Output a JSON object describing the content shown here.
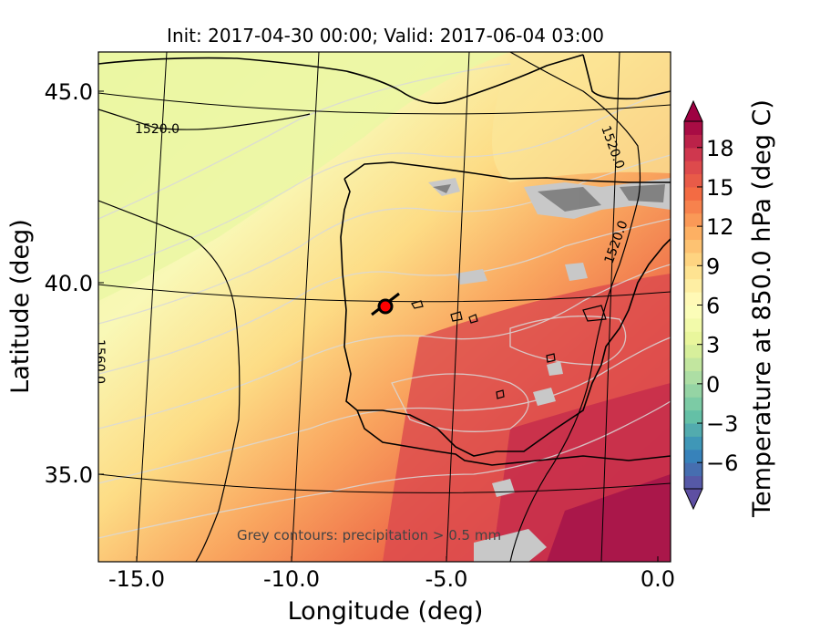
{
  "title": "Init: 2017-04-30 00:00; Valid: 2017-06-04 03:00",
  "map": {
    "xlabel": "Longitude (deg)",
    "ylabel": "Latitude (deg)",
    "xlim": [
      -15.8,
      0.3
    ],
    "ylim": [
      32.7,
      46.0
    ],
    "x_ticks": [
      "-15.0",
      "-10.0",
      "-5.0",
      "0.0"
    ],
    "y_ticks": [
      "45.0",
      "40.0",
      "35.0"
    ],
    "field": "Temperature at 850.0 hPa",
    "field_units": "deg C",
    "geopotential_contour_labels": [
      "1520.0",
      "1520.0",
      "1520.0",
      "1560.0"
    ],
    "precip_note": "Grey contours: precipitation > 0.5 mm",
    "marker": {
      "lon": -7.6,
      "lat": 39.3,
      "color": "#ff0000"
    }
  },
  "colorbar": {
    "label": "Temperature at 850.0 hPa (deg C)",
    "tick_labels": [
      "−6",
      "−3",
      "0",
      "3",
      "6",
      "9",
      "12",
      "15",
      "18"
    ],
    "tick_values": [
      -6,
      -3,
      0,
      3,
      6,
      9,
      12,
      15,
      18
    ],
    "range": [
      -8,
      20
    ],
    "extend": "both",
    "colormap": [
      "#5e4fa2",
      "#3288bd",
      "#66c2a5",
      "#abdda4",
      "#e6f598",
      "#ffffbf",
      "#fee08b",
      "#fdae61",
      "#f46d43",
      "#d53e4f",
      "#9e0142"
    ]
  }
}
